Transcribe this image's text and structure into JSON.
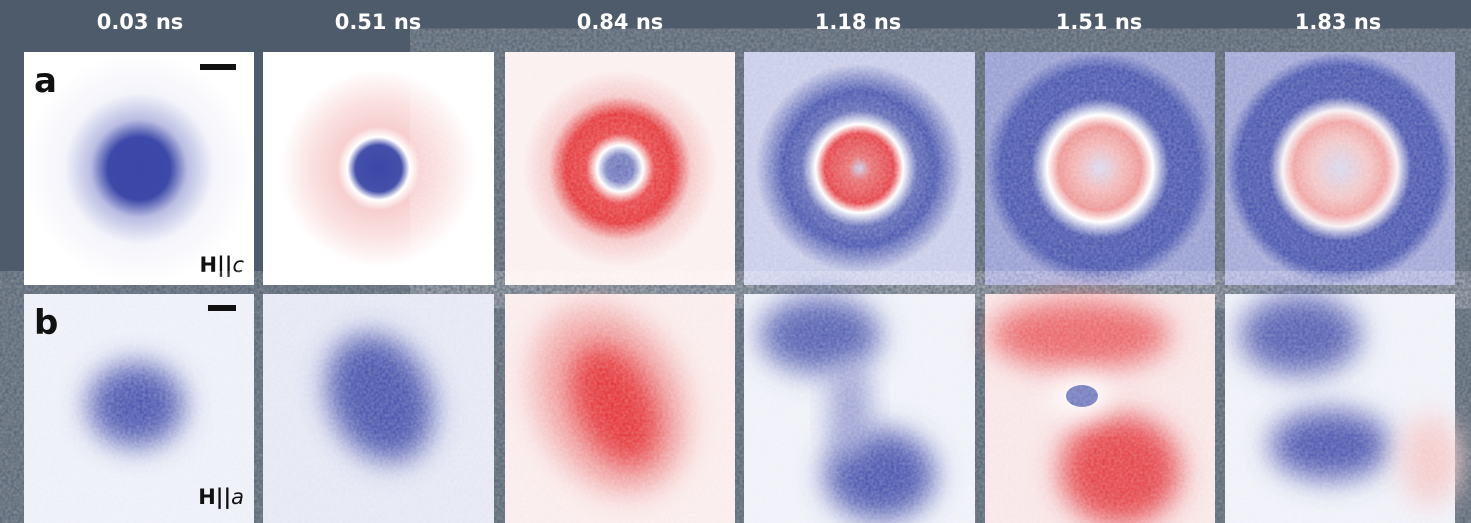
{
  "column_headers": [
    "0.03 ns",
    "0.51 ns",
    "0.84 ns",
    "1.18 ns",
    "1.51 ns",
    "1.83 ns"
  ],
  "rows": [
    {
      "label": "a",
      "field_prefix": "H||",
      "field_axis": "c"
    },
    {
      "label": "b",
      "field_prefix": "H||",
      "field_axis": "a"
    }
  ]
}
